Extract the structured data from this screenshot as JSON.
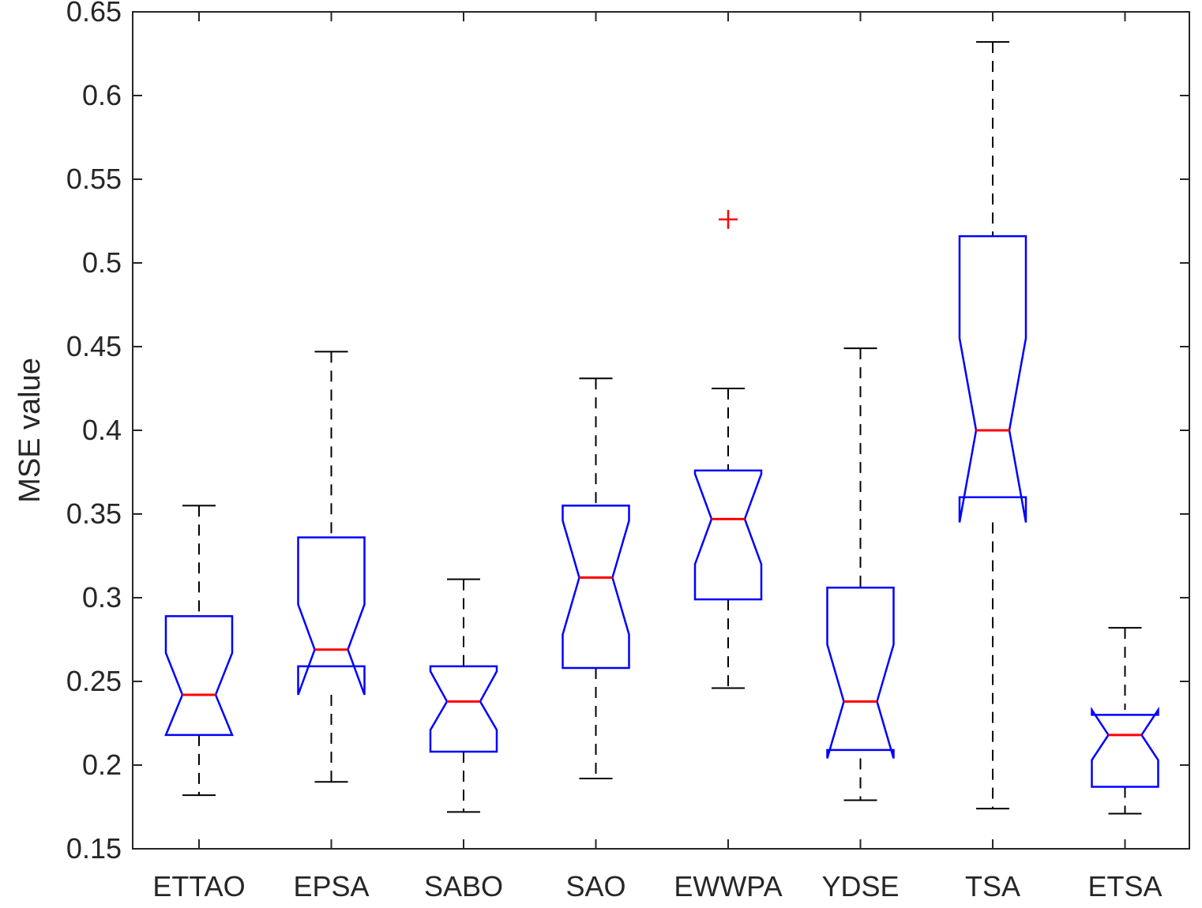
{
  "chart_data": {
    "type": "boxplot",
    "notched": true,
    "title": "",
    "xlabel": "",
    "ylabel": "MSE value",
    "ylim": [
      0.15,
      0.65
    ],
    "yticks": [
      0.15,
      0.2,
      0.25,
      0.3,
      0.35,
      0.4,
      0.45,
      0.5,
      0.55,
      0.6,
      0.65
    ],
    "ytick_labels": [
      "0.15",
      "0.2",
      "0.25",
      "0.3",
      "0.35",
      "0.4",
      "0.45",
      "0.5",
      "0.55",
      "0.6",
      "0.65"
    ],
    "categories": [
      "ETTAO",
      "EPSA",
      "SABO",
      "SAO",
      "EWWPA",
      "YDSE",
      "TSA",
      "ETSA"
    ],
    "boxes": [
      {
        "name": "ETTAO",
        "whisker_low": 0.182,
        "q1": 0.218,
        "median": 0.242,
        "q3": 0.289,
        "whisker_high": 0.355,
        "notch_low": 0.218,
        "notch_high": 0.267,
        "outliers": []
      },
      {
        "name": "EPSA",
        "whisker_low": 0.19,
        "q1": 0.259,
        "median": 0.269,
        "q3": 0.336,
        "whisker_high": 0.447,
        "notch_low": 0.242,
        "notch_high": 0.296,
        "outliers": []
      },
      {
        "name": "SABO",
        "whisker_low": 0.172,
        "q1": 0.208,
        "median": 0.238,
        "q3": 0.259,
        "whisker_high": 0.311,
        "notch_low": 0.221,
        "notch_high": 0.256,
        "outliers": []
      },
      {
        "name": "SAO",
        "whisker_low": 0.192,
        "q1": 0.258,
        "median": 0.312,
        "q3": 0.355,
        "whisker_high": 0.431,
        "notch_low": 0.278,
        "notch_high": 0.346,
        "outliers": []
      },
      {
        "name": "EWWPA",
        "whisker_low": 0.246,
        "q1": 0.299,
        "median": 0.347,
        "q3": 0.376,
        "whisker_high": 0.425,
        "notch_low": 0.32,
        "notch_high": 0.374,
        "outliers": [
          0.526
        ]
      },
      {
        "name": "YDSE",
        "whisker_low": 0.179,
        "q1": 0.209,
        "median": 0.238,
        "q3": 0.306,
        "whisker_high": 0.449,
        "notch_low": 0.204,
        "notch_high": 0.272,
        "outliers": []
      },
      {
        "name": "TSA",
        "whisker_low": 0.174,
        "q1": 0.36,
        "median": 0.4,
        "q3": 0.516,
        "whisker_high": 0.632,
        "notch_low": 0.345,
        "notch_high": 0.455,
        "outliers": []
      },
      {
        "name": "ETSA",
        "whisker_low": 0.171,
        "q1": 0.187,
        "median": 0.218,
        "q3": 0.23,
        "whisker_high": 0.282,
        "notch_low": 0.203,
        "notch_high": 0.233,
        "outliers": []
      }
    ],
    "colors": {
      "box": "#0000ff",
      "median": "#ff0000",
      "whisker": "#000000",
      "outlier": "#ff0000",
      "axis": "#262626"
    },
    "grid": false,
    "legend": "none"
  }
}
